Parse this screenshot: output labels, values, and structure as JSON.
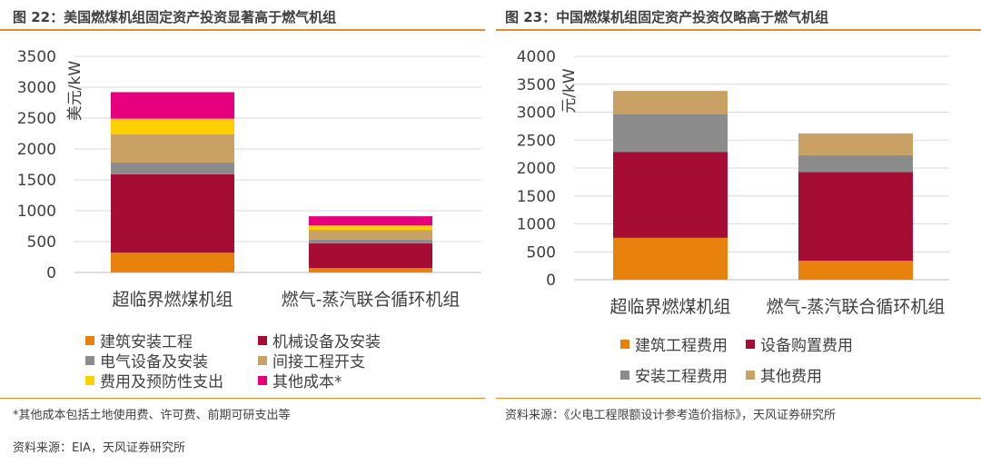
{
  "left": {
    "title": "图 22：美国燃煤机组固定资产投资显著高于燃气机组",
    "note": "*其他成本包括土地使用费、许可费、前期可研支出等",
    "source": "资料来源：EIA，天风证券研究所"
  },
  "right": {
    "title": "图 23：中国燃煤机组固定资产投资仅略高于燃气机组",
    "source": "资料来源：《火电工程限额设计参考造价指标》，天风证券研究所"
  },
  "chart_data": [
    {
      "type": "bar",
      "stacked": true,
      "categories": [
        "超临界燃煤机组",
        "燃气-蒸汽联合循环机组"
      ],
      "ylabel": "美元/kW",
      "ylim": [
        0,
        3500
      ],
      "yticks": [
        0,
        500,
        1000,
        1500,
        2000,
        2500,
        3000,
        3500
      ],
      "grid": true,
      "legend_position": "bottom",
      "series": [
        {
          "name": "建筑安装工程",
          "color": "#e8820c",
          "values": [
            320,
            70
          ]
        },
        {
          "name": "机械设备及安装",
          "color": "#a50d35",
          "values": [
            1270,
            400
          ]
        },
        {
          "name": "电气设备及安装",
          "color": "#8c8c8c",
          "values": [
            190,
            60
          ]
        },
        {
          "name": "间接工程开支",
          "color": "#c9a165",
          "values": [
            460,
            160
          ]
        },
        {
          "name": "费用及预防性支出",
          "color": "#ffd000",
          "values": [
            250,
            70
          ]
        },
        {
          "name": "其他成本*",
          "color": "#e6007e",
          "values": [
            430,
            150
          ]
        }
      ]
    },
    {
      "type": "bar",
      "stacked": true,
      "categories": [
        "超临界燃煤机组",
        "燃气-蒸汽联合循环机组"
      ],
      "ylabel": "元/kW",
      "ylim": [
        0,
        4000
      ],
      "yticks": [
        0,
        500,
        1000,
        1500,
        2000,
        2500,
        3000,
        3500,
        4000
      ],
      "grid": true,
      "legend_position": "bottom",
      "series": [
        {
          "name": "建筑工程费用",
          "color": "#e8820c",
          "values": [
            750,
            340
          ]
        },
        {
          "name": "设备购置费用",
          "color": "#a50d35",
          "values": [
            1540,
            1590
          ]
        },
        {
          "name": "安装工程费用",
          "color": "#8c8c8c",
          "values": [
            680,
            300
          ]
        },
        {
          "name": "其他费用",
          "color": "#c9a165",
          "values": [
            410,
            390
          ]
        }
      ]
    }
  ]
}
